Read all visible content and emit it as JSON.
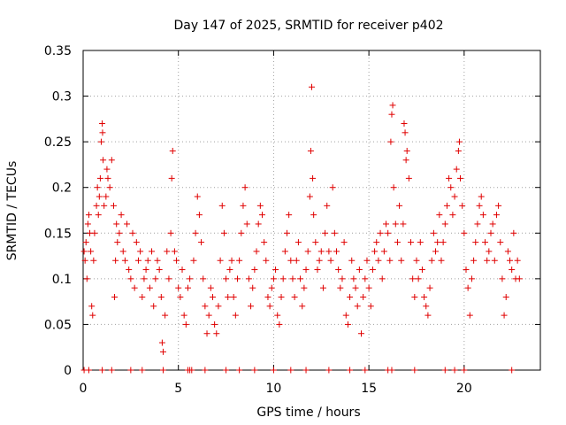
{
  "chart_data": {
    "type": "scatter",
    "title": "Day 147 of 2025, SRMTID for receiver p402",
    "xlabel": "GPS time / hours",
    "ylabel": "SRMTID / TECUs",
    "xlim": [
      0,
      24
    ],
    "ylim": [
      0,
      0.35
    ],
    "grid": true,
    "marker": "+",
    "marker_color": "#e00000",
    "x_ticks": [
      0,
      5,
      10,
      15,
      20
    ],
    "x_tick_labels": [
      "0",
      "5",
      "10",
      "15",
      "20"
    ],
    "y_ticks": [
      0,
      0.05,
      0.1,
      0.15,
      0.2,
      0.25,
      0.3,
      0.35
    ],
    "y_tick_labels": [
      "0",
      "0.05",
      "0.1",
      "0.15",
      "0.2",
      "0.25",
      "0.3",
      "0.35"
    ],
    "series": [
      {
        "name": "SRMTID",
        "points": [
          [
            0.05,
            0.13
          ],
          [
            0.1,
            0.12
          ],
          [
            0.15,
            0.14
          ],
          [
            0.2,
            0.1
          ],
          [
            0.25,
            0.16
          ],
          [
            0.3,
            0.17
          ],
          [
            0.35,
            0.15
          ],
          [
            0.4,
            0.13
          ],
          [
            0.45,
            0.07
          ],
          [
            0.5,
            0.06
          ],
          [
            0.55,
            0.12
          ],
          [
            0.6,
            0.15
          ],
          [
            0.7,
            0.18
          ],
          [
            0.75,
            0.2
          ],
          [
            0.8,
            0.17
          ],
          [
            0.85,
            0.19
          ],
          [
            0.9,
            0.21
          ],
          [
            0.95,
            0.25
          ],
          [
            1.0,
            0.27
          ],
          [
            1.02,
            0.26
          ],
          [
            1.05,
            0.23
          ],
          [
            1.1,
            0.18
          ],
          [
            1.2,
            0.19
          ],
          [
            1.25,
            0.22
          ],
          [
            1.3,
            0.21
          ],
          [
            1.4,
            0.2
          ],
          [
            1.5,
            0.23
          ],
          [
            1.6,
            0.18
          ],
          [
            1.65,
            0.08
          ],
          [
            1.7,
            0.12
          ],
          [
            1.75,
            0.16
          ],
          [
            1.8,
            0.14
          ],
          [
            1.9,
            0.15
          ],
          [
            2.0,
            0.17
          ],
          [
            2.1,
            0.13
          ],
          [
            2.2,
            0.12
          ],
          [
            2.3,
            0.16
          ],
          [
            2.4,
            0.11
          ],
          [
            2.5,
            0.1
          ],
          [
            2.6,
            0.15
          ],
          [
            2.7,
            0.09
          ],
          [
            2.8,
            0.14
          ],
          [
            2.9,
            0.12
          ],
          [
            3.0,
            0.13
          ],
          [
            3.1,
            0.08
          ],
          [
            3.2,
            0.1
          ],
          [
            3.3,
            0.11
          ],
          [
            3.4,
            0.12
          ],
          [
            3.5,
            0.09
          ],
          [
            3.6,
            0.13
          ],
          [
            3.7,
            0.07
          ],
          [
            3.8,
            0.1
          ],
          [
            3.9,
            0.12
          ],
          [
            4.0,
            0.11
          ],
          [
            4.1,
            0.08
          ],
          [
            4.15,
            0.03
          ],
          [
            4.2,
            0.02
          ],
          [
            4.3,
            0.06
          ],
          [
            4.4,
            0.13
          ],
          [
            4.5,
            0.1
          ],
          [
            4.6,
            0.15
          ],
          [
            4.65,
            0.21
          ],
          [
            4.7,
            0.24
          ],
          [
            4.8,
            0.13
          ],
          [
            4.9,
            0.12
          ],
          [
            5.0,
            0.09
          ],
          [
            5.1,
            0.08
          ],
          [
            5.2,
            0.11
          ],
          [
            5.3,
            0.06
          ],
          [
            5.4,
            0.05
          ],
          [
            5.5,
            0.09
          ],
          [
            5.6,
            0.1
          ],
          [
            5.8,
            0.12
          ],
          [
            5.9,
            0.15
          ],
          [
            6.0,
            0.19
          ],
          [
            6.1,
            0.17
          ],
          [
            6.2,
            0.14
          ],
          [
            6.3,
            0.1
          ],
          [
            6.4,
            0.07
          ],
          [
            6.5,
            0.04
          ],
          [
            6.6,
            0.06
          ],
          [
            6.7,
            0.09
          ],
          [
            6.8,
            0.08
          ],
          [
            6.9,
            0.05
          ],
          [
            7.0,
            0.04
          ],
          [
            7.1,
            0.07
          ],
          [
            7.2,
            0.12
          ],
          [
            7.3,
            0.18
          ],
          [
            7.4,
            0.15
          ],
          [
            7.5,
            0.1
          ],
          [
            7.6,
            0.08
          ],
          [
            7.7,
            0.11
          ],
          [
            7.8,
            0.12
          ],
          [
            7.9,
            0.08
          ],
          [
            8.0,
            0.06
          ],
          [
            8.1,
            0.1
          ],
          [
            8.2,
            0.12
          ],
          [
            8.3,
            0.15
          ],
          [
            8.4,
            0.18
          ],
          [
            8.5,
            0.2
          ],
          [
            8.6,
            0.16
          ],
          [
            8.7,
            0.1
          ],
          [
            8.8,
            0.07
          ],
          [
            8.9,
            0.09
          ],
          [
            9.0,
            0.11
          ],
          [
            9.1,
            0.13
          ],
          [
            9.2,
            0.16
          ],
          [
            9.3,
            0.18
          ],
          [
            9.4,
            0.17
          ],
          [
            9.5,
            0.14
          ],
          [
            9.6,
            0.12
          ],
          [
            9.7,
            0.08
          ],
          [
            9.8,
            0.07
          ],
          [
            9.9,
            0.09
          ],
          [
            10.0,
            0.1
          ],
          [
            10.1,
            0.11
          ],
          [
            10.2,
            0.06
          ],
          [
            10.3,
            0.05
          ],
          [
            10.4,
            0.08
          ],
          [
            10.5,
            0.1
          ],
          [
            10.6,
            0.13
          ],
          [
            10.7,
            0.15
          ],
          [
            10.8,
            0.17
          ],
          [
            10.9,
            0.12
          ],
          [
            11.0,
            0.1
          ],
          [
            11.1,
            0.08
          ],
          [
            11.2,
            0.12
          ],
          [
            11.3,
            0.14
          ],
          [
            11.4,
            0.1
          ],
          [
            11.5,
            0.07
          ],
          [
            11.6,
            0.09
          ],
          [
            11.7,
            0.11
          ],
          [
            11.8,
            0.13
          ],
          [
            11.9,
            0.19
          ],
          [
            11.95,
            0.24
          ],
          [
            12.0,
            0.31
          ],
          [
            12.05,
            0.21
          ],
          [
            12.1,
            0.17
          ],
          [
            12.2,
            0.14
          ],
          [
            12.3,
            0.11
          ],
          [
            12.4,
            0.12
          ],
          [
            12.5,
            0.13
          ],
          [
            12.6,
            0.09
          ],
          [
            12.7,
            0.15
          ],
          [
            12.8,
            0.18
          ],
          [
            12.9,
            0.13
          ],
          [
            13.0,
            0.12
          ],
          [
            13.1,
            0.2
          ],
          [
            13.2,
            0.15
          ],
          [
            13.3,
            0.13
          ],
          [
            13.4,
            0.11
          ],
          [
            13.5,
            0.09
          ],
          [
            13.6,
            0.1
          ],
          [
            13.7,
            0.14
          ],
          [
            13.8,
            0.06
          ],
          [
            13.9,
            0.05
          ],
          [
            14.0,
            0.08
          ],
          [
            14.1,
            0.12
          ],
          [
            14.2,
            0.1
          ],
          [
            14.3,
            0.09
          ],
          [
            14.4,
            0.07
          ],
          [
            14.5,
            0.11
          ],
          [
            14.6,
            0.04
          ],
          [
            14.7,
            0.08
          ],
          [
            14.8,
            0.1
          ],
          [
            14.9,
            0.12
          ],
          [
            15.0,
            0.09
          ],
          [
            15.1,
            0.07
          ],
          [
            15.2,
            0.11
          ],
          [
            15.3,
            0.13
          ],
          [
            15.4,
            0.14
          ],
          [
            15.5,
            0.12
          ],
          [
            15.6,
            0.15
          ],
          [
            15.7,
            0.1
          ],
          [
            15.8,
            0.13
          ],
          [
            15.9,
            0.16
          ],
          [
            16.0,
            0.15
          ],
          [
            16.1,
            0.12
          ],
          [
            16.15,
            0.25
          ],
          [
            16.2,
            0.28
          ],
          [
            16.25,
            0.29
          ],
          [
            16.3,
            0.2
          ],
          [
            16.4,
            0.16
          ],
          [
            16.5,
            0.14
          ],
          [
            16.6,
            0.18
          ],
          [
            16.7,
            0.12
          ],
          [
            16.8,
            0.16
          ],
          [
            16.85,
            0.27
          ],
          [
            16.9,
            0.26
          ],
          [
            16.95,
            0.23
          ],
          [
            17.0,
            0.24
          ],
          [
            17.1,
            0.21
          ],
          [
            17.2,
            0.14
          ],
          [
            17.3,
            0.1
          ],
          [
            17.4,
            0.08
          ],
          [
            17.5,
            0.12
          ],
          [
            17.6,
            0.1
          ],
          [
            17.7,
            0.14
          ],
          [
            17.8,
            0.11
          ],
          [
            17.9,
            0.08
          ],
          [
            18.0,
            0.07
          ],
          [
            18.1,
            0.06
          ],
          [
            18.2,
            0.09
          ],
          [
            18.3,
            0.12
          ],
          [
            18.4,
            0.15
          ],
          [
            18.5,
            0.13
          ],
          [
            18.6,
            0.14
          ],
          [
            18.7,
            0.17
          ],
          [
            18.8,
            0.12
          ],
          [
            18.9,
            0.14
          ],
          [
            19.0,
            0.16
          ],
          [
            19.1,
            0.18
          ],
          [
            19.2,
            0.21
          ],
          [
            19.3,
            0.2
          ],
          [
            19.4,
            0.17
          ],
          [
            19.5,
            0.19
          ],
          [
            19.6,
            0.22
          ],
          [
            19.7,
            0.24
          ],
          [
            19.75,
            0.25
          ],
          [
            19.8,
            0.21
          ],
          [
            19.9,
            0.18
          ],
          [
            20.0,
            0.15
          ],
          [
            20.1,
            0.11
          ],
          [
            20.2,
            0.09
          ],
          [
            20.3,
            0.06
          ],
          [
            20.4,
            0.1
          ],
          [
            20.5,
            0.12
          ],
          [
            20.6,
            0.14
          ],
          [
            20.7,
            0.16
          ],
          [
            20.8,
            0.18
          ],
          [
            20.9,
            0.19
          ],
          [
            21.0,
            0.17
          ],
          [
            21.1,
            0.14
          ],
          [
            21.2,
            0.12
          ],
          [
            21.3,
            0.13
          ],
          [
            21.4,
            0.15
          ],
          [
            21.5,
            0.16
          ],
          [
            21.6,
            0.12
          ],
          [
            21.7,
            0.17
          ],
          [
            21.8,
            0.18
          ],
          [
            21.9,
            0.14
          ],
          [
            22.0,
            0.1
          ],
          [
            22.1,
            0.06
          ],
          [
            22.2,
            0.08
          ],
          [
            22.3,
            0.13
          ],
          [
            22.4,
            0.12
          ],
          [
            22.5,
            0.11
          ],
          [
            22.6,
            0.15
          ],
          [
            22.7,
            0.1
          ],
          [
            22.8,
            0.12
          ],
          [
            22.9,
            0.1
          ],
          [
            0.05,
            0.0
          ],
          [
            0.3,
            0.0
          ],
          [
            1.0,
            0.0
          ],
          [
            1.5,
            0.0
          ],
          [
            2.5,
            0.0
          ],
          [
            3.1,
            0.0
          ],
          [
            4.2,
            0.0
          ],
          [
            5.5,
            0.0
          ],
          [
            5.6,
            0.0
          ],
          [
            5.7,
            0.0
          ],
          [
            6.4,
            0.0
          ],
          [
            7.5,
            0.0
          ],
          [
            8.2,
            0.0
          ],
          [
            9.0,
            0.0
          ],
          [
            10.0,
            0.0
          ],
          [
            10.9,
            0.0
          ],
          [
            11.7,
            0.0
          ],
          [
            12.9,
            0.0
          ],
          [
            14.0,
            0.0
          ],
          [
            14.8,
            0.0
          ],
          [
            16.0,
            0.0
          ],
          [
            16.2,
            0.0
          ],
          [
            17.4,
            0.0
          ],
          [
            19.0,
            0.0
          ],
          [
            19.5,
            0.0
          ],
          [
            20.0,
            0.0
          ],
          [
            22.5,
            0.0
          ]
        ]
      }
    ]
  }
}
